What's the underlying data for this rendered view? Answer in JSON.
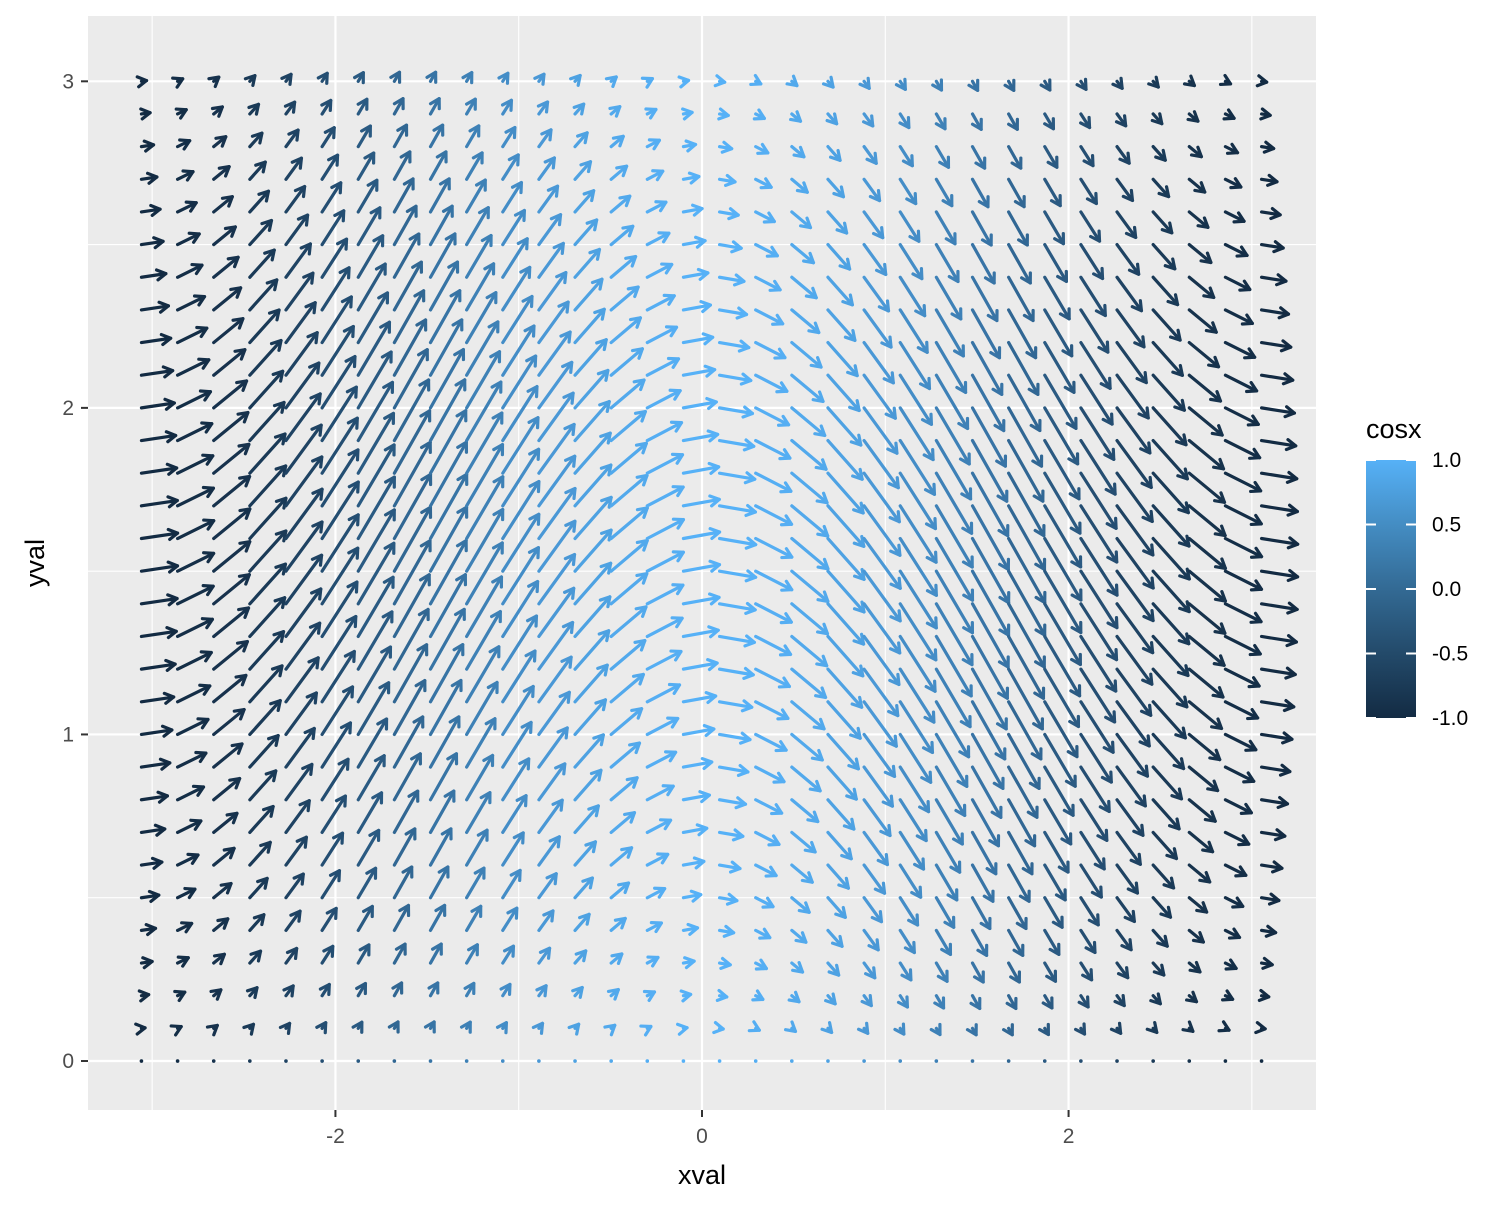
{
  "chart_data": {
    "type": "quiver",
    "xlabel": "xval",
    "ylabel": "yval",
    "xlim": [
      -3.35,
      3.35
    ],
    "ylim": [
      -0.15,
      3.2
    ],
    "x_ticks": [
      -2,
      0,
      2
    ],
    "x_tick_labels": [
      "-2",
      "0",
      "2"
    ],
    "y_ticks": [
      0,
      1,
      2,
      3
    ],
    "y_tick_labels": [
      "0",
      "1",
      "2",
      "3"
    ],
    "grid": {
      "x_start": -3.0584,
      "x_step": 0.19714,
      "x_count": 32,
      "y_start": 0,
      "y_step": 0.1,
      "y_count": 31
    },
    "panel_background": "#ebebeb",
    "grid_color": "#ffffff",
    "vector_field": {
      "dx": "sin(y)",
      "dy": "-sin(x) * sin(y)",
      "color_variable": "cos(x)",
      "description": "arrow at (x, y) points in direction (sin y, -sin x sin y) with length proportional to magnitude"
    },
    "arrow_scale": 0.19714,
    "legend": {
      "title": "cosx",
      "placement": "right",
      "range": [
        -1.0,
        1.0
      ],
      "ticks": [
        1.0,
        0.5,
        0.0,
        -0.5,
        -1.0
      ],
      "tick_labels": [
        "1.0",
        "0.5",
        "0.0",
        "-0.5",
        "-1.0"
      ],
      "color_low": "#132b43",
      "color_high": "#56b1f7"
    }
  }
}
